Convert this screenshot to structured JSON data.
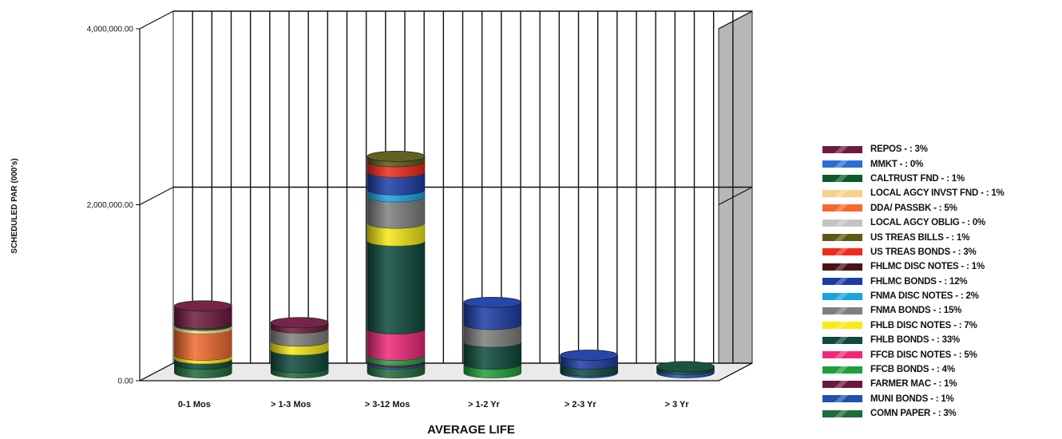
{
  "chart_data": {
    "type": "bar",
    "stacked": true,
    "three_d": true,
    "title": "",
    "xlabel": "AVERAGE LIFE",
    "ylabel": "SCHEDULED PAR (000's)",
    "ylim": [
      0,
      4000000
    ],
    "yticks": [
      0,
      2000000,
      4000000
    ],
    "ytick_labels": [
      "0.00",
      "2,000,000.00",
      "4,000,000.00"
    ],
    "grid": true,
    "legend_position": "right",
    "categories": [
      "0-1 Mos",
      "> 1-3 Mos",
      "> 3-12 Mos",
      "> 1-2 Yr",
      "> 2-3 Yr",
      "> 3 Yr"
    ],
    "series": [
      {
        "name": "COMN PAPER",
        "legend_label": "COMN PAPER - : 3%",
        "color": "#1f6b3a",
        "values": [
          100000,
          60000,
          100000,
          0,
          0,
          0
        ]
      },
      {
        "name": "MUNI BONDS",
        "legend_label": "MUNI BONDS - : 1%",
        "color": "#1f4fb0",
        "values": [
          0,
          0,
          20000,
          0,
          20000,
          40000
        ]
      },
      {
        "name": "FARMER MAC",
        "legend_label": "FARMER MAC - : 1%",
        "color": "#6b1a3a",
        "values": [
          0,
          0,
          20000,
          0,
          0,
          0
        ]
      },
      {
        "name": "FFCB BONDS",
        "legend_label": "FFCB BONDS - : 4%",
        "color": "#1fa03a",
        "values": [
          0,
          0,
          60000,
          100000,
          0,
          0
        ]
      },
      {
        "name": "FFCB DISC NOTES",
        "legend_label": "FFCB DISC NOTES - : 5%",
        "color": "#f0287a",
        "values": [
          0,
          0,
          300000,
          0,
          0,
          0
        ]
      },
      {
        "name": "FHLB BONDS",
        "legend_label": "FHLB BONDS - : 33%",
        "color": "#0e4a3c",
        "values": [
          60000,
          200000,
          1000000,
          250000,
          80000,
          30000
        ]
      },
      {
        "name": "FHLB DISC NOTES",
        "legend_label": "FHLB DISC NOTES - : 7%",
        "color": "#f7ea16",
        "values": [
          40000,
          100000,
          200000,
          0,
          0,
          0
        ]
      },
      {
        "name": "FNMA BONDS",
        "legend_label": "FNMA BONDS - : 15%",
        "color": "#7d807c",
        "values": [
          0,
          150000,
          300000,
          200000,
          0,
          0
        ]
      },
      {
        "name": "FNMA DISC NOTES",
        "legend_label": "FNMA DISC NOTES - : 2%",
        "color": "#1aa3e0",
        "values": [
          0,
          0,
          80000,
          0,
          0,
          0
        ]
      },
      {
        "name": "FHLMC BONDS",
        "legend_label": "FHLMC BONDS - : 12%",
        "color": "#1c3da6",
        "values": [
          0,
          0,
          200000,
          250000,
          100000,
          0
        ]
      },
      {
        "name": "FHLMC DISC NOTES",
        "legend_label": "FHLMC DISC NOTES - : 1%",
        "color": "#4a1414",
        "values": [
          0,
          0,
          0,
          0,
          0,
          0
        ]
      },
      {
        "name": "US TREAS BONDS",
        "legend_label": "US TREAS BONDS - : 3%",
        "color": "#f02a1a",
        "values": [
          0,
          0,
          120000,
          0,
          0,
          0
        ]
      },
      {
        "name": "US TREAS BILLS",
        "legend_label": "US TREAS BILLS - : 1%",
        "color": "#5a5a14",
        "values": [
          0,
          0,
          60000,
          0,
          0,
          0
        ]
      },
      {
        "name": "LOCAL AGCY OBLIG",
        "legend_label": "LOCAL AGCY OBLIG - : 0%",
        "color": "#c4c4c4",
        "values": [
          0,
          0,
          0,
          0,
          0,
          0
        ]
      },
      {
        "name": "DDA/PASSBK",
        "legend_label": "DDA/ PASSBK - : 5%",
        "color": "#f26a2e",
        "values": [
          300000,
          0,
          0,
          0,
          0,
          0
        ]
      },
      {
        "name": "LOCAL AGCY INVST FND",
        "legend_label": "LOCAL AGCY INVST FND - : 1%",
        "color": "#f7d08a",
        "values": [
          40000,
          0,
          0,
          0,
          0,
          0
        ]
      },
      {
        "name": "CALTRUST FND",
        "legend_label": "CALTRUST FND - : 1%",
        "color": "#0b5a2a",
        "values": [
          20000,
          0,
          0,
          0,
          0,
          0
        ]
      },
      {
        "name": "MMKT",
        "legend_label": "MMKT - : 0%",
        "color": "#2b6fd6",
        "values": [
          0,
          0,
          0,
          0,
          0,
          0
        ]
      },
      {
        "name": "REPOS",
        "legend_label": "REPOS - : 3%",
        "color": "#6e1a3e",
        "values": [
          200000,
          60000,
          0,
          0,
          0,
          0
        ]
      }
    ]
  }
}
